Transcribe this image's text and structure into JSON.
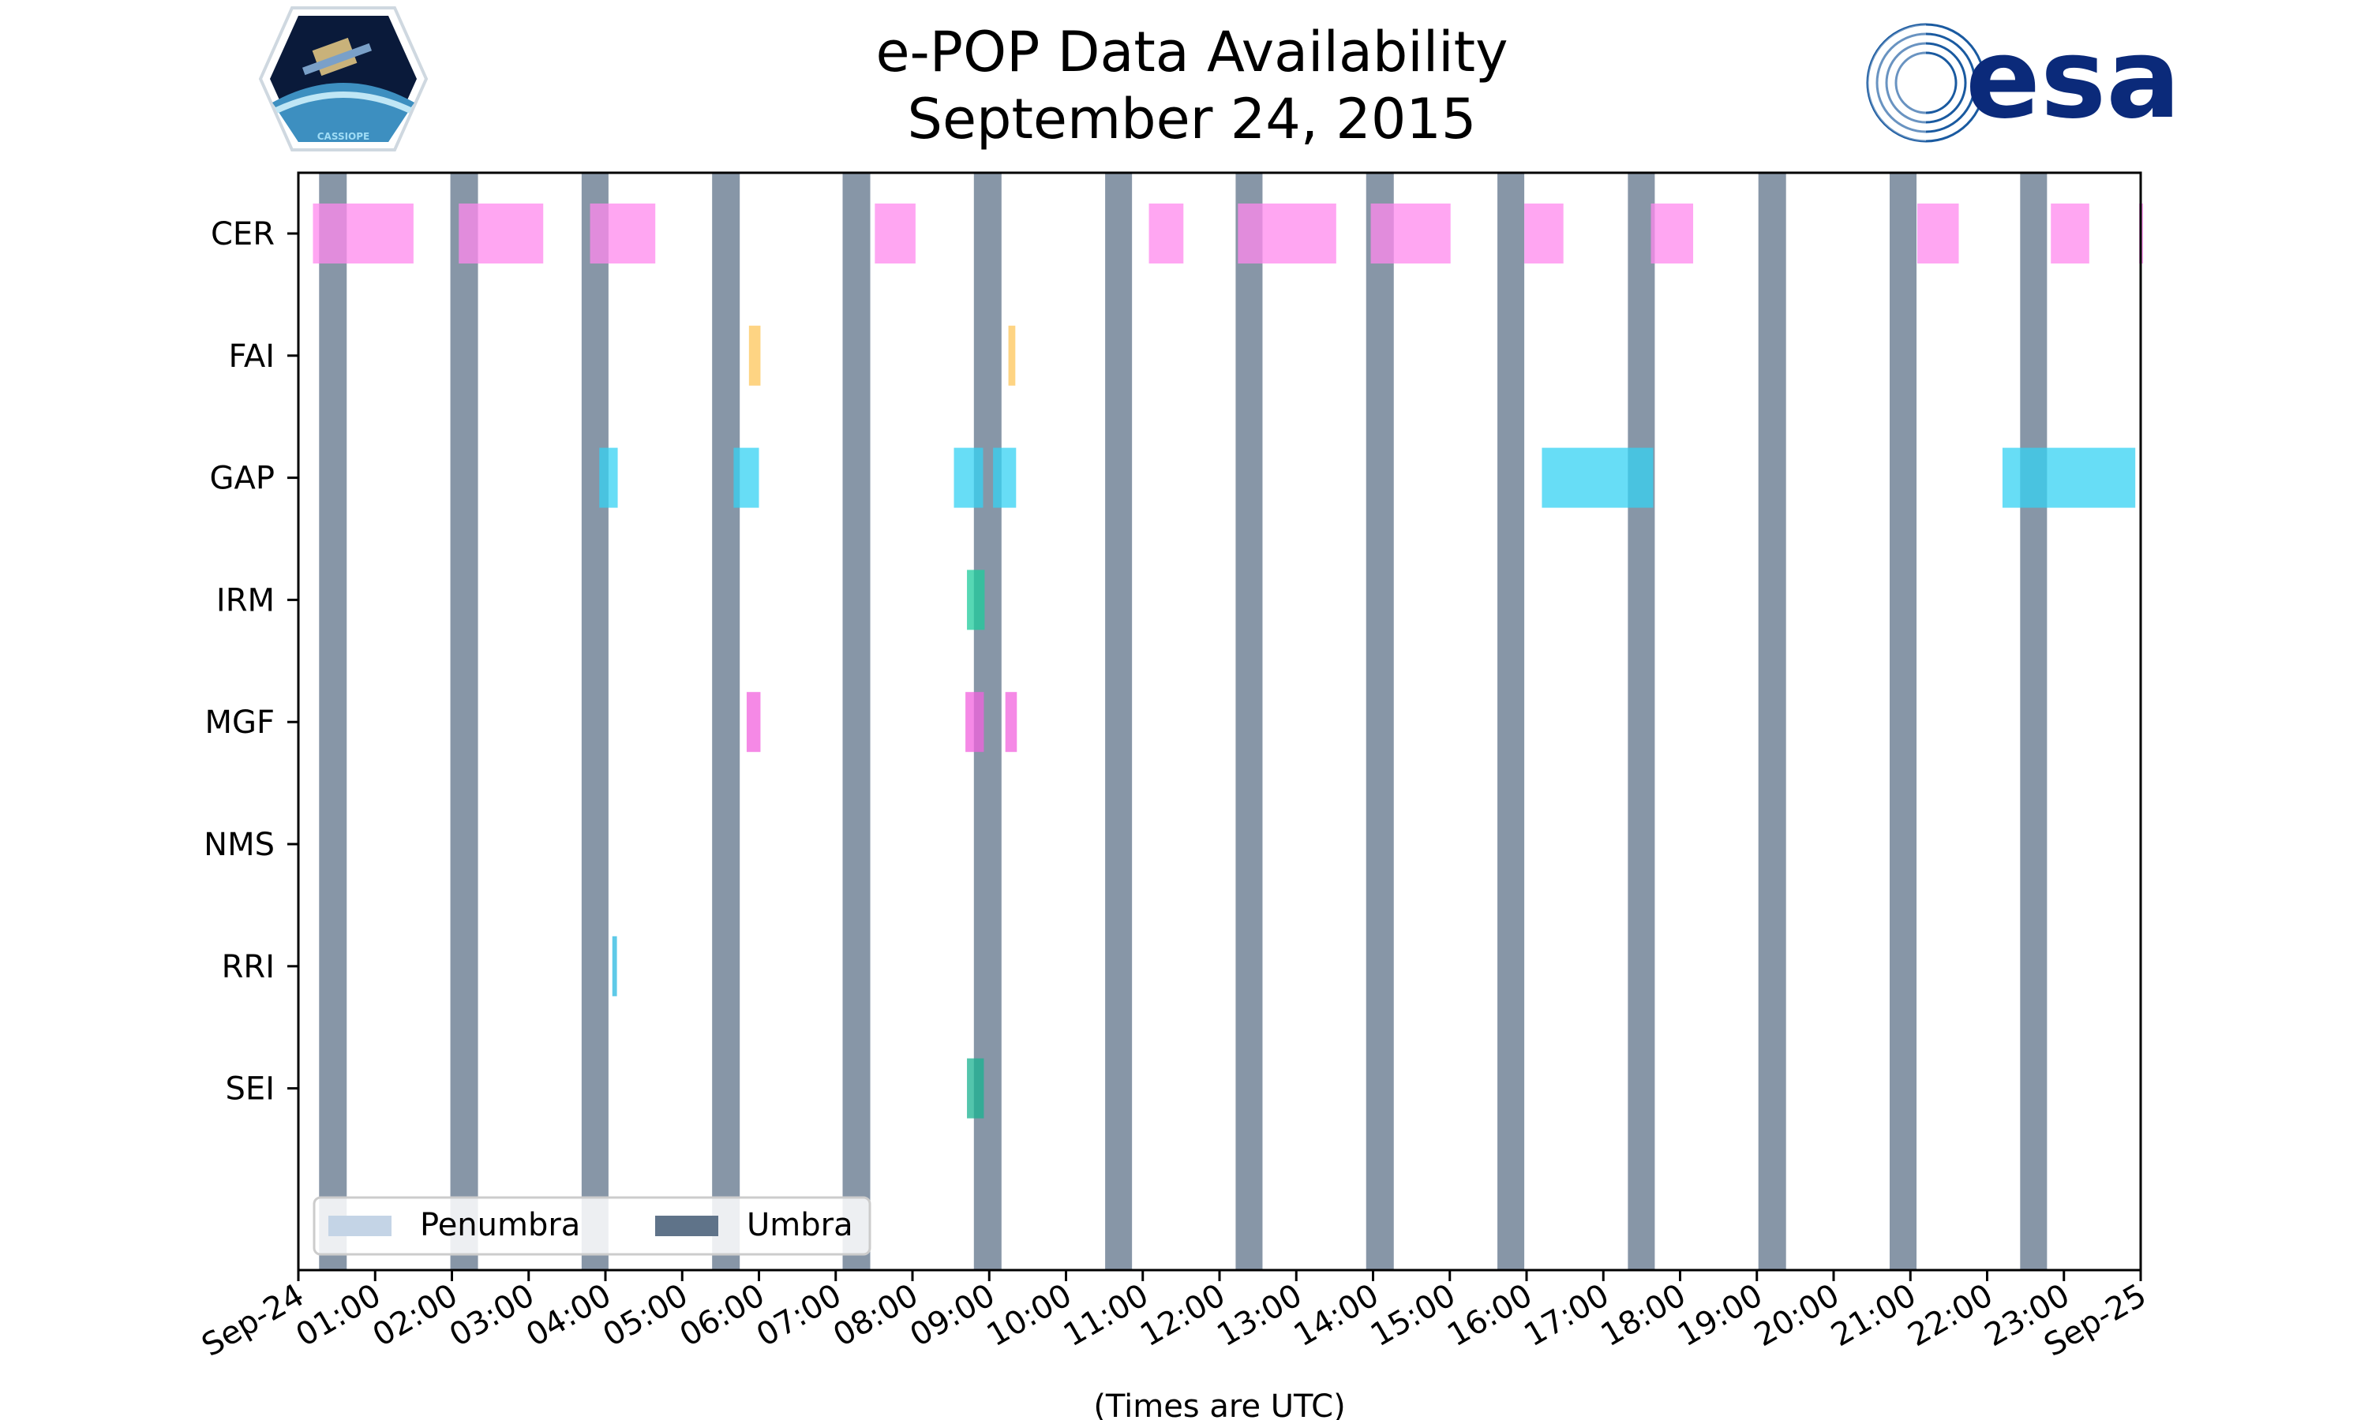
{
  "chart_data": {
    "type": "timeline",
    "title_lines": [
      "e-POP Data Availability",
      "September 24, 2015"
    ],
    "xlabel": "(Times are UTC)",
    "x_range_hours": [
      0,
      24
    ],
    "x_ticks": [
      {
        "h": 0,
        "label": "Sep-24"
      },
      {
        "h": 1,
        "label": "01:00"
      },
      {
        "h": 2,
        "label": "02:00"
      },
      {
        "h": 3,
        "label": "03:00"
      },
      {
        "h": 4,
        "label": "04:00"
      },
      {
        "h": 5,
        "label": "05:00"
      },
      {
        "h": 6,
        "label": "06:00"
      },
      {
        "h": 7,
        "label": "07:00"
      },
      {
        "h": 8,
        "label": "08:00"
      },
      {
        "h": 9,
        "label": "09:00"
      },
      {
        "h": 10,
        "label": "10:00"
      },
      {
        "h": 11,
        "label": "11:00"
      },
      {
        "h": 12,
        "label": "12:00"
      },
      {
        "h": 13,
        "label": "13:00"
      },
      {
        "h": 14,
        "label": "14:00"
      },
      {
        "h": 15,
        "label": "15:00"
      },
      {
        "h": 16,
        "label": "16:00"
      },
      {
        "h": 17,
        "label": "17:00"
      },
      {
        "h": 18,
        "label": "18:00"
      },
      {
        "h": 19,
        "label": "19:00"
      },
      {
        "h": 20,
        "label": "20:00"
      },
      {
        "h": 21,
        "label": "21:00"
      },
      {
        "h": 22,
        "label": "22:00"
      },
      {
        "h": 23,
        "label": "23:00"
      },
      {
        "h": 24,
        "label": "Sep-25"
      }
    ],
    "instruments": [
      "CER",
      "FAI",
      "GAP",
      "IRM",
      "MGF",
      "NMS",
      "RRI",
      "SEI"
    ],
    "colors": {
      "CER": "#ff88ee",
      "FAI": "#fdc65a",
      "GAP": "#34d2f3",
      "IRM": "#1ecb9b",
      "MGF": "#f262dd",
      "NMS": "#888888",
      "RRI": "#2ab8e0",
      "SEI": "#1ab190",
      "umbra": "#5f7389",
      "penumbra": "#c4d4e6"
    },
    "umbra_intervals": [
      [
        0.27,
        0.63
      ],
      [
        1.98,
        2.34
      ],
      [
        3.69,
        4.04
      ],
      [
        5.39,
        5.75
      ],
      [
        7.09,
        7.45
      ],
      [
        8.8,
        9.16
      ],
      [
        10.51,
        10.86
      ],
      [
        12.21,
        12.56
      ],
      [
        13.91,
        14.27
      ],
      [
        15.62,
        15.97
      ],
      [
        17.32,
        17.67
      ],
      [
        19.02,
        19.38
      ],
      [
        20.73,
        21.08
      ],
      [
        22.43,
        22.78
      ]
    ],
    "data_intervals": {
      "CER": [
        [
          0.19,
          1.5
        ],
        [
          2.09,
          3.19
        ],
        [
          3.8,
          4.65
        ],
        [
          7.51,
          8.04
        ],
        [
          11.08,
          11.53
        ],
        [
          12.24,
          13.52
        ],
        [
          13.97,
          15.01
        ],
        [
          15.97,
          16.48
        ],
        [
          17.62,
          18.17
        ],
        [
          21.09,
          21.63
        ],
        [
          22.83,
          23.33
        ],
        [
          23.98,
          24.0
        ]
      ],
      "FAI": [
        [
          5.87,
          6.02
        ],
        [
          9.25,
          9.34
        ]
      ],
      "GAP": [
        [
          3.92,
          4.16
        ],
        [
          5.67,
          6.0
        ],
        [
          8.54,
          8.92
        ],
        [
          9.05,
          9.35
        ],
        [
          16.2,
          17.65
        ],
        [
          22.2,
          23.93
        ]
      ],
      "IRM": [
        [
          8.71,
          8.94
        ]
      ],
      "MGF": [
        [
          5.84,
          6.02
        ],
        [
          8.69,
          8.93
        ],
        [
          9.21,
          9.36
        ]
      ],
      "NMS": [],
      "RRI": [
        [
          4.09,
          4.15
        ]
      ],
      "SEI": [
        [
          8.71,
          8.93
        ]
      ]
    },
    "legend": {
      "position": "lower-left",
      "entries": [
        "Penumbra",
        "Umbra"
      ]
    }
  },
  "logos": {
    "cassiope_text": "CASSIOPE",
    "esa_text": "esa"
  }
}
